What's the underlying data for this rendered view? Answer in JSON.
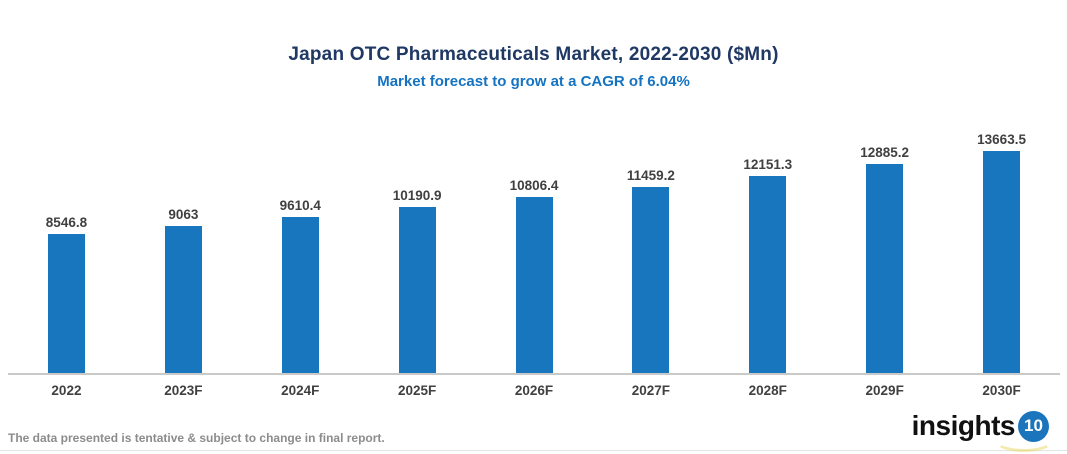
{
  "header": {
    "title": "Japan OTC Pharmaceuticals Market, 2022-2030 ($Mn)",
    "subtitle": "Market forecast to grow at a CAGR of 6.04%"
  },
  "chart_data": {
    "type": "bar",
    "title": "Japan OTC Pharmaceuticals Market, 2022-2030 ($Mn)",
    "subtitle": "Market forecast to grow at a CAGR of 6.04%",
    "categories": [
      "2022",
      "2023F",
      "2024F",
      "2025F",
      "2026F",
      "2027F",
      "2028F",
      "2029F",
      "2030F"
    ],
    "values": [
      8546.8,
      9063,
      9610.4,
      10190.9,
      10806.4,
      11459.2,
      12151.3,
      12885.2,
      13663.5
    ],
    "xlabel": "",
    "ylabel": "",
    "ylim": [
      0,
      13663.5
    ],
    "grid": false,
    "legend": "none",
    "value_labels_shown": true,
    "bar_color": "#1776BE"
  },
  "footer": {
    "note": "The data presented is tentative & subject to change in final report.",
    "logo_text": "insights",
    "logo_number": "10"
  },
  "colors": {
    "title": "#1F3864",
    "subtitle": "#1473C2",
    "bar": "#1776BE",
    "data_label": "#404040",
    "axis_line": "#C9C9C9",
    "note": "#8C8C8C",
    "logo_circle": "#1B75BC"
  }
}
